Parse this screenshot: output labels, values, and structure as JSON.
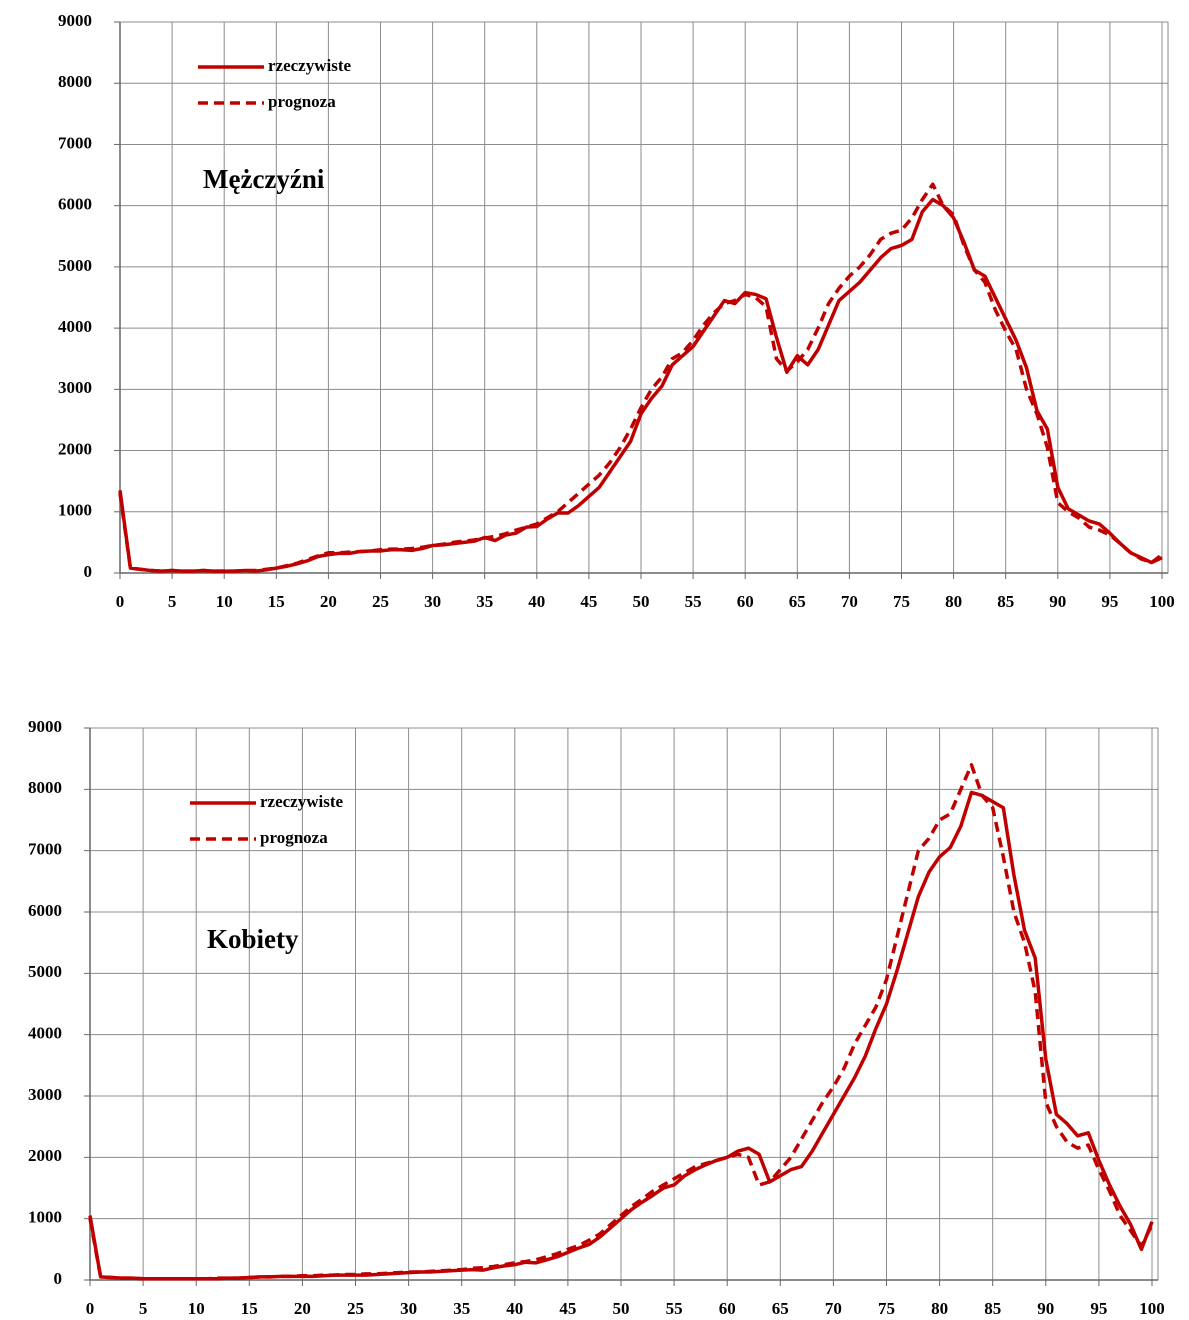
{
  "chart_data": [
    {
      "type": "line",
      "title": "Mężczyźni",
      "x": [
        0,
        1,
        2,
        3,
        4,
        5,
        6,
        7,
        8,
        9,
        10,
        11,
        12,
        13,
        14,
        15,
        16,
        17,
        18,
        19,
        20,
        21,
        22,
        23,
        24,
        25,
        26,
        27,
        28,
        29,
        30,
        31,
        32,
        33,
        34,
        35,
        36,
        37,
        38,
        39,
        40,
        41,
        42,
        43,
        44,
        45,
        46,
        47,
        48,
        49,
        50,
        51,
        52,
        53,
        54,
        55,
        56,
        57,
        58,
        59,
        60,
        61,
        62,
        63,
        64,
        65,
        66,
        67,
        68,
        69,
        70,
        71,
        72,
        73,
        74,
        75,
        76,
        77,
        78,
        79,
        80,
        81,
        82,
        83,
        84,
        85,
        86,
        87,
        88,
        89,
        90,
        91,
        92,
        93,
        94,
        95,
        96,
        97,
        98,
        99,
        100
      ],
      "series": [
        {
          "name": "rzeczywiste",
          "color": "#c00000",
          "dash": false,
          "values": [
            1350,
            80,
            60,
            40,
            30,
            40,
            30,
            30,
            40,
            30,
            30,
            30,
            40,
            30,
            50,
            80,
            110,
            150,
            200,
            270,
            300,
            320,
            320,
            350,
            360,
            360,
            380,
            380,
            370,
            400,
            450,
            460,
            480,
            500,
            520,
            580,
            530,
            620,
            650,
            750,
            760,
            880,
            980,
            980,
            1100,
            1250,
            1400,
            1650,
            1900,
            2150,
            2600,
            2850,
            3050,
            3400,
            3550,
            3700,
            3950,
            4200,
            4450,
            4400,
            4580,
            4550,
            4480,
            3850,
            3280,
            3550,
            3400,
            3650,
            4050,
            4450,
            4600,
            4750,
            4950,
            5150,
            5300,
            5350,
            5450,
            5900,
            6100,
            6000,
            5800,
            5400,
            4950,
            4850,
            4500,
            4150,
            3800,
            3350,
            2650,
            2350,
            1400,
            1050,
            950,
            850,
            800,
            650,
            480,
            330,
            250,
            170,
            250
          ]
        },
        {
          "name": "prognoza",
          "color": "#c00000",
          "dash": true,
          "values": [
            1300,
            80,
            60,
            40,
            30,
            40,
            30,
            30,
            40,
            30,
            30,
            30,
            40,
            40,
            60,
            80,
            120,
            160,
            220,
            280,
            330,
            330,
            340,
            350,
            360,
            380,
            390,
            390,
            400,
            420,
            450,
            470,
            500,
            520,
            540,
            570,
            600,
            640,
            700,
            750,
            800,
            900,
            1000,
            1150,
            1300,
            1450,
            1600,
            1800,
            2050,
            2350,
            2700,
            3000,
            3200,
            3500,
            3600,
            3800,
            4050,
            4250,
            4400,
            4450,
            4550,
            4500,
            4350,
            3500,
            3300,
            3450,
            3650,
            4000,
            4400,
            4650,
            4850,
            5000,
            5200,
            5450,
            5550,
            5600,
            5800,
            6100,
            6350,
            6000,
            5850,
            5350,
            4950,
            4750,
            4300,
            3950,
            3650,
            3000,
            2600,
            2050,
            1150,
            1000,
            900,
            750,
            700,
            620,
            480,
            330,
            230,
            170,
            300
          ]
        }
      ],
      "xlim": [
        0,
        100
      ],
      "xticks": [
        0,
        5,
        10,
        15,
        20,
        25,
        30,
        35,
        40,
        45,
        50,
        55,
        60,
        65,
        70,
        75,
        80,
        85,
        90,
        95,
        100
      ],
      "ylim": [
        0,
        9000
      ],
      "yticks": [
        0,
        1000,
        2000,
        3000,
        4000,
        5000,
        6000,
        7000,
        8000,
        9000
      ],
      "grid": true
    },
    {
      "type": "line",
      "title": "Kobiety",
      "x": [
        0,
        1,
        2,
        3,
        4,
        5,
        6,
        7,
        8,
        9,
        10,
        11,
        12,
        13,
        14,
        15,
        16,
        17,
        18,
        19,
        20,
        21,
        22,
        23,
        24,
        25,
        26,
        27,
        28,
        29,
        30,
        31,
        32,
        33,
        34,
        35,
        36,
        37,
        38,
        39,
        40,
        41,
        42,
        43,
        44,
        45,
        46,
        47,
        48,
        49,
        50,
        51,
        52,
        53,
        54,
        55,
        56,
        57,
        58,
        59,
        60,
        61,
        62,
        63,
        64,
        65,
        66,
        67,
        68,
        69,
        70,
        71,
        72,
        73,
        74,
        75,
        76,
        77,
        78,
        79,
        80,
        81,
        82,
        83,
        84,
        85,
        86,
        87,
        88,
        89,
        90,
        91,
        92,
        93,
        94,
        95,
        96,
        97,
        98,
        99,
        100
      ],
      "series": [
        {
          "name": "rzeczywiste",
          "color": "#c00000",
          "dash": false,
          "values": [
            1050,
            50,
            40,
            30,
            30,
            20,
            20,
            20,
            20,
            20,
            20,
            20,
            20,
            30,
            30,
            40,
            50,
            50,
            60,
            60,
            60,
            60,
            70,
            80,
            80,
            80,
            80,
            90,
            100,
            110,
            120,
            130,
            130,
            140,
            150,
            160,
            170,
            160,
            200,
            230,
            250,
            290,
            280,
            330,
            380,
            450,
            520,
            580,
            700,
            850,
            1000,
            1150,
            1270,
            1380,
            1500,
            1550,
            1700,
            1800,
            1880,
            1950,
            2000,
            2100,
            2150,
            2050,
            1600,
            1700,
            1800,
            1850,
            2100,
            2400,
            2700,
            3000,
            3300,
            3650,
            4100,
            4500,
            5050,
            5650,
            6250,
            6650,
            6900,
            7050,
            7400,
            7950,
            7900,
            7800,
            7700,
            6600,
            5700,
            5250,
            3600,
            2700,
            2550,
            2350,
            2400,
            1950,
            1550,
            1200,
            900,
            500,
            950
          ]
        },
        {
          "name": "prognoza",
          "color": "#c00000",
          "dash": true,
          "values": [
            1000,
            50,
            40,
            30,
            30,
            20,
            20,
            20,
            20,
            20,
            20,
            20,
            30,
            30,
            30,
            40,
            50,
            50,
            60,
            60,
            70,
            70,
            80,
            80,
            90,
            90,
            100,
            100,
            110,
            120,
            130,
            130,
            140,
            150,
            160,
            170,
            190,
            200,
            220,
            250,
            280,
            300,
            330,
            380,
            430,
            500,
            560,
            650,
            750,
            900,
            1050,
            1200,
            1320,
            1450,
            1550,
            1650,
            1750,
            1850,
            1900,
            1950,
            2000,
            2050,
            2000,
            1550,
            1600,
            1800,
            2000,
            2300,
            2600,
            2900,
            3150,
            3450,
            3850,
            4150,
            4450,
            4900,
            5600,
            6300,
            7000,
            7200,
            7500,
            7600,
            8000,
            8400,
            7900,
            7700,
            6900,
            6000,
            5500,
            4700,
            2900,
            2500,
            2250,
            2150,
            2200,
            1800,
            1450,
            1050,
            800,
            550,
            900
          ]
        }
      ],
      "xlim": [
        0,
        100
      ],
      "xticks": [
        0,
        5,
        10,
        15,
        20,
        25,
        30,
        35,
        40,
        45,
        50,
        55,
        60,
        65,
        70,
        75,
        80,
        85,
        90,
        95,
        100
      ],
      "ylim": [
        0,
        9000
      ],
      "yticks": [
        0,
        1000,
        2000,
        3000,
        4000,
        5000,
        6000,
        7000,
        8000,
        9000
      ],
      "grid": true
    }
  ]
}
